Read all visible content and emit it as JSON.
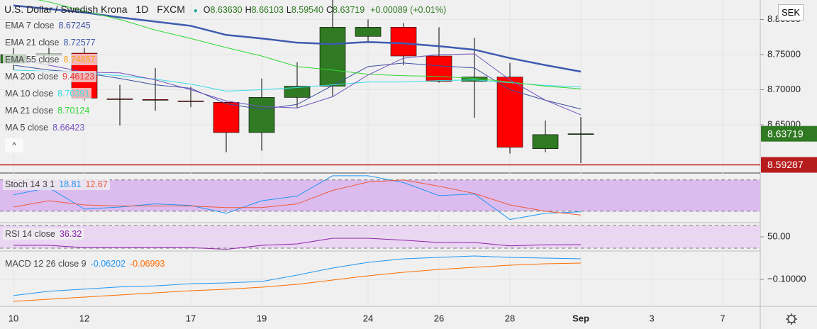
{
  "chart_data": [
    {
      "type": "candlestick",
      "header": {
        "symbol": "U.S. Dollar / Swedish Krona",
        "interval": "1D",
        "source": "FXCM",
        "ohlc": [
          {
            "label": "O",
            "value": "8.63630"
          },
          {
            "label": "H",
            "value": "8.66103"
          },
          {
            "label": "L",
            "value": "8.59540"
          },
          {
            "label": "C",
            "value": "8.63719"
          }
        ],
        "change": "+0.00089 (+0.01%)"
      },
      "currency": "SEK",
      "categories": [
        "10",
        null,
        "12",
        null,
        null,
        "17",
        null,
        "19",
        null,
        null,
        "24",
        null,
        "26",
        null,
        "28",
        null,
        "Sep",
        null,
        "3",
        null,
        "7"
      ],
      "open": [
        8.738,
        8.749,
        8.752,
        8.687,
        8.686,
        8.684,
        8.682,
        8.639,
        8.689,
        8.705,
        8.776,
        8.789,
        8.748,
        8.712,
        8.718,
        8.616,
        8.6363,
        null,
        null,
        null,
        null
      ],
      "high": [
        8.76,
        8.765,
        8.768,
        8.707,
        8.731,
        8.704,
        8.683,
        8.716,
        8.739,
        8.828,
        8.8,
        8.795,
        8.789,
        8.774,
        8.738,
        8.656,
        8.66103,
        null,
        null,
        null,
        null
      ],
      "low": [
        8.728,
        8.735,
        8.685,
        8.649,
        8.67,
        8.675,
        8.611,
        8.613,
        8.674,
        8.69,
        8.768,
        8.735,
        8.71,
        8.66,
        8.609,
        8.611,
        8.5954,
        null,
        null,
        null,
        null
      ],
      "close": [
        8.75,
        8.751,
        8.688,
        8.686,
        8.685,
        8.683,
        8.639,
        8.689,
        8.705,
        8.789,
        8.789,
        8.748,
        8.712,
        8.718,
        8.618,
        8.636,
        8.63719,
        null,
        null,
        null,
        null
      ],
      "up_color": "#2f7a22",
      "down_color": "#ff0000",
      "ylim": [
        8.5823,
        8.8278
      ],
      "yticks": [
        {
          "value": 8.8,
          "label": "8.80000"
        },
        {
          "value": 8.75,
          "label": "8.75000"
        },
        {
          "value": 8.7,
          "label": "8.70000"
        },
        {
          "value": 8.65,
          "label": "8.65000"
        }
      ],
      "price_lines": [
        {
          "value": 8.63719,
          "color": "#2f7a22"
        },
        {
          "value": 8.59287,
          "color": "#b71c1c"
        }
      ],
      "overlays": [
        {
          "name": "EMA 7 close",
          "color": "#3b4fa0",
          "width": 1,
          "values": [
            8.735,
            8.728,
            8.724,
            8.716,
            8.707,
            8.702,
            8.68,
            8.672,
            8.679,
            8.706,
            8.733,
            8.738,
            8.734,
            8.731,
            8.7,
            8.685,
            8.67245,
            null,
            null,
            null,
            null
          ]
        },
        {
          "name": "EMA 21 close",
          "color": "#3f5bb0",
          "width": 2.5,
          "values": [
            8.82,
            8.815,
            8.81,
            8.803,
            8.797,
            8.791,
            8.778,
            8.773,
            8.767,
            8.765,
            8.768,
            8.766,
            8.762,
            8.757,
            8.745,
            8.735,
            8.72577,
            null,
            null,
            null,
            null
          ]
        },
        {
          "name": "MA 10 close",
          "color": "#38dce6",
          "width": 1,
          "values": [
            8.728,
            8.726,
            8.724,
            8.72,
            8.715,
            8.708,
            8.698,
            8.7,
            8.703,
            8.707,
            8.711,
            8.711,
            8.713,
            8.714,
            8.71,
            8.706,
            8.70391,
            null,
            null,
            null,
            null
          ]
        },
        {
          "name": "MA 21 close",
          "color": "#33d633",
          "width": 1,
          "values": [
            8.835,
            8.825,
            8.812,
            8.8,
            8.785,
            8.773,
            8.76,
            8.748,
            8.733,
            8.728,
            8.722,
            8.72,
            8.719,
            8.716,
            8.711,
            8.705,
            8.70124,
            null,
            null,
            null,
            null
          ]
        },
        {
          "name": "MA 5 close",
          "color": "#7352c0",
          "width": 1,
          "values": [
            8.745,
            8.735,
            8.725,
            8.724,
            8.714,
            8.7,
            8.684,
            8.676,
            8.674,
            8.69,
            8.721,
            8.745,
            8.75,
            8.751,
            8.714,
            8.685,
            8.66423,
            null,
            null,
            null,
            null
          ]
        }
      ],
      "legend_only": [
        {
          "name": "EMA 55 close",
          "color": "#f5a623",
          "value": 8.74857
        },
        {
          "name": "MA 200 close",
          "color": "#e53935",
          "value": 9.46123
        }
      ]
    },
    {
      "type": "line",
      "title": "Stoch 14 3 1",
      "ylim": [
        0,
        92
      ],
      "bands": [
        20,
        80
      ],
      "band_color": "#dcbcef",
      "series": [
        {
          "color": "#2196f3",
          "values": [
            51.4,
            65,
            24,
            28,
            34,
            31,
            16,
            40,
            49,
            88,
            88,
            75,
            50,
            53,
            4,
            16,
            18.81,
            null,
            null,
            null,
            null
          ]
        },
        {
          "color": "#ef5a3a",
          "values": [
            28,
            40,
            32,
            30,
            30,
            30,
            27,
            27,
            34,
            60,
            76,
            80,
            68,
            54,
            32,
            20,
            12.67,
            null,
            null,
            null,
            null
          ]
        }
      ]
    },
    {
      "type": "line",
      "title": "RSI 14 close",
      "ylim": [
        27.5,
        72.5
      ],
      "bands": [
        30,
        70
      ],
      "band_color": "#ead6f2",
      "yticks": [
        {
          "value": 50,
          "label": "50.00"
        }
      ],
      "series": [
        {
          "color": "#8e24aa",
          "values": [
            35,
            35,
            31,
            31,
            31,
            31,
            28,
            35,
            37.5,
            47.5,
            47.5,
            44,
            40,
            40,
            34,
            36,
            36.32,
            null,
            null,
            null,
            null
          ]
        }
      ]
    },
    {
      "type": "line",
      "title": "MACD 12 26 close 9",
      "ylim": [
        -0.1498,
        -0.0489
      ],
      "yticks": [
        {
          "value": -0.1,
          "label": "−0.10000"
        }
      ],
      "series": [
        {
          "color": "#2196f3",
          "values": [
            -0.13,
            -0.122,
            -0.118,
            -0.114,
            -0.112,
            -0.108,
            -0.1066,
            -0.104,
            -0.0921,
            -0.079,
            -0.0685,
            -0.062,
            -0.0594,
            -0.0567,
            -0.0594,
            -0.0607,
            -0.06202,
            null,
            null,
            null,
            null
          ]
        },
        {
          "color": "#ff6d00",
          "values": [
            -0.1406,
            -0.1367,
            -0.1328,
            -0.1288,
            -0.1249,
            -0.121,
            -0.1183,
            -0.1144,
            -0.1092,
            -0.1013,
            -0.0934,
            -0.0869,
            -0.0817,
            -0.0777,
            -0.0738,
            -0.0712,
            -0.06993,
            null,
            null,
            null,
            null
          ]
        }
      ]
    }
  ]
}
